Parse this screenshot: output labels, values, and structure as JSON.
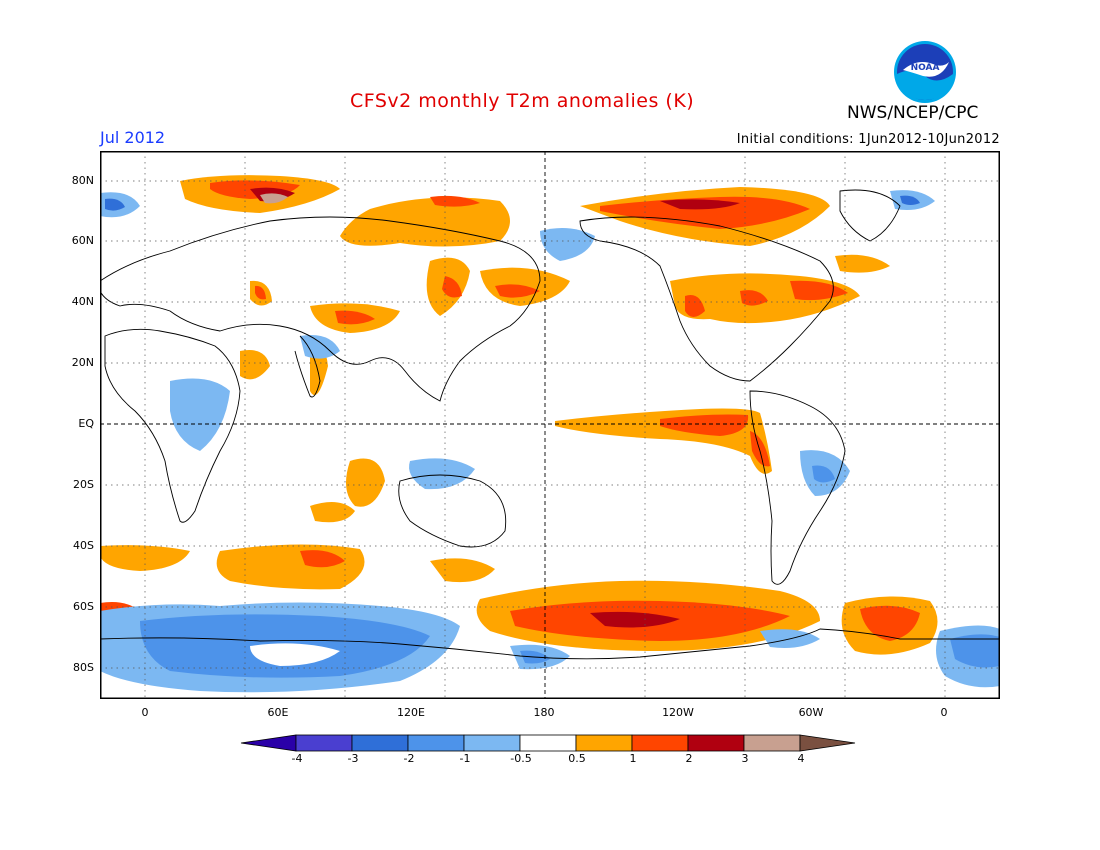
{
  "header": {
    "title": "CFSv2 monthly T2m anomalies (K)",
    "month": "Jul 2012",
    "initial_conditions": "Initial conditions: 1Jun2012-10Jun2012",
    "agency": "NWS/NCEP/CPC",
    "logo_text": "NOAA"
  },
  "map": {
    "lat_labels": [
      "80N",
      "60N",
      "40N",
      "20N",
      "EQ",
      "20S",
      "40S",
      "60S",
      "80S"
    ],
    "lon_labels": [
      "0",
      "60E",
      "120E",
      "180",
      "120W",
      "60W",
      "0"
    ]
  },
  "colorbar": {
    "tick_labels": [
      "-4",
      "-3",
      "-2",
      "-1",
      "-0.5",
      "0.5",
      "1",
      "2",
      "3",
      "4"
    ],
    "colors": [
      "#2a00a8",
      "#4a3fd0",
      "#2f6fd8",
      "#4d93ea",
      "#7cb8f2",
      "#ffffff",
      "#ffa500",
      "#ff4500",
      "#b00010",
      "#c8a090",
      "#7a5040"
    ]
  }
}
